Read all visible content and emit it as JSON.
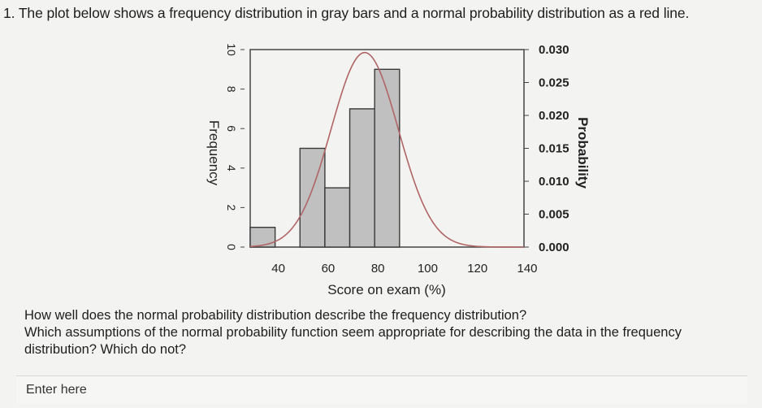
{
  "question": {
    "text": "1. The plot below shows a frequency distribution in gray bars and a normal probability distribution as a red line."
  },
  "prompt": {
    "line1": "How well does the normal probability distribution describe the frequency distribution?",
    "line2": "Which assumptions of the normal probability function seem appropriate for describing the data in the frequency",
    "line3": "distribution? Which do not?"
  },
  "answer": {
    "placeholder": "Enter here"
  },
  "chart_data": {
    "type": "bar",
    "xlabel": "Score on exam (%)",
    "ylabel": "Frequency",
    "y2label": "Probability",
    "xlim": [
      30,
      140
    ],
    "ylim": [
      0,
      10
    ],
    "y2lim": [
      0,
      0.03
    ],
    "x_ticks": [
      40,
      60,
      80,
      100,
      120,
      140
    ],
    "y_ticks": [
      0,
      2,
      4,
      6,
      8,
      10
    ],
    "y2_ticks": [
      0.0,
      0.005,
      0.01,
      0.015,
      0.02,
      0.025,
      0.03
    ],
    "y2_tick_labels": [
      "0.000",
      "0.005",
      "0.010",
      "0.015",
      "0.020",
      "0.025",
      "0.030"
    ],
    "bar_color": "#bfc0bf",
    "curve_color": "#b06565",
    "bins": [
      {
        "x0": 30,
        "x1": 40,
        "value": 1
      },
      {
        "x0": 50,
        "x1": 60,
        "value": 5
      },
      {
        "x0": 60,
        "x1": 70,
        "value": 3
      },
      {
        "x0": 70,
        "x1": 80,
        "value": 7
      },
      {
        "x0": 80,
        "x1": 90,
        "value": 9
      }
    ],
    "normal_curve": {
      "mean": 76,
      "sd": 13.5
    }
  }
}
